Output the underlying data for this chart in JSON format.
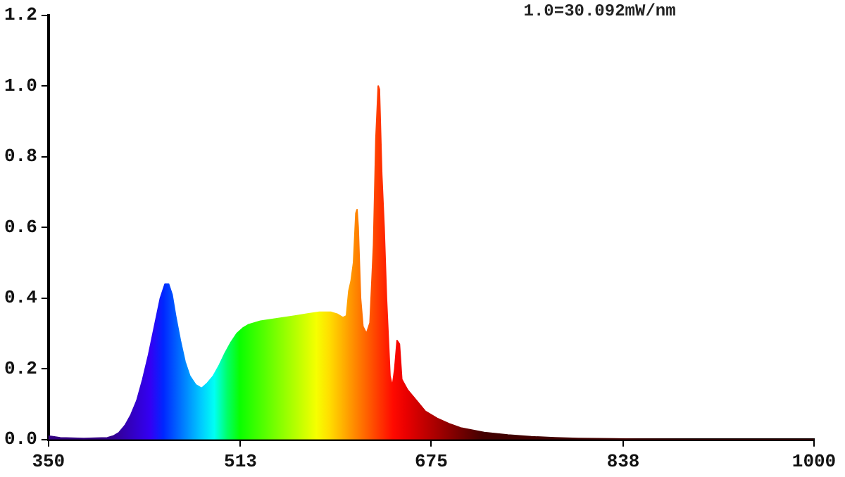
{
  "chart_data": {
    "type": "area",
    "annotations": [
      "1.0=30.092mW/nm"
    ],
    "x": [
      350,
      360,
      380,
      400,
      405,
      410,
      415,
      420,
      425,
      430,
      435,
      440,
      445,
      449,
      452,
      455,
      458,
      462,
      466,
      470,
      475,
      480,
      485,
      490,
      495,
      500,
      505,
      510,
      515,
      520,
      530,
      540,
      550,
      560,
      570,
      580,
      590,
      595,
      600,
      603,
      605,
      607,
      609,
      611,
      612,
      613,
      615,
      617,
      620,
      623,
      626,
      628,
      630,
      631,
      633,
      635,
      637,
      640,
      642,
      644,
      646,
      648,
      650,
      655,
      660,
      670,
      680,
      690,
      700,
      720,
      740,
      760,
      780,
      800,
      830,
      850,
      900,
      1000
    ],
    "values": [
      0.01,
      0.005,
      0.003,
      0.005,
      0.01,
      0.02,
      0.04,
      0.07,
      0.11,
      0.17,
      0.24,
      0.32,
      0.4,
      0.44,
      0.44,
      0.41,
      0.35,
      0.28,
      0.22,
      0.18,
      0.155,
      0.145,
      0.16,
      0.18,
      0.21,
      0.245,
      0.275,
      0.3,
      0.315,
      0.325,
      0.335,
      0.34,
      0.345,
      0.35,
      0.355,
      0.36,
      0.36,
      0.355,
      0.345,
      0.35,
      0.42,
      0.45,
      0.5,
      0.64,
      0.65,
      0.6,
      0.4,
      0.32,
      0.3,
      0.33,
      0.55,
      0.85,
      1.0,
      0.99,
      0.75,
      0.6,
      0.4,
      0.18,
      0.15,
      0.2,
      0.28,
      0.27,
      0.17,
      0.14,
      0.12,
      0.08,
      0.06,
      0.045,
      0.033,
      0.02,
      0.013,
      0.008,
      0.005,
      0.003,
      0.002,
      0.001,
      0,
      0
    ],
    "xlim": [
      350,
      1000
    ],
    "xticks": [
      350,
      513,
      675,
      838,
      1000
    ],
    "ylim": [
      0,
      1.2
    ],
    "yticks": [
      {
        "value": 0,
        "label": "0.0"
      },
      0.2,
      0.4,
      0.6,
      0.8,
      {
        "value": 1,
        "label": "1.0"
      },
      1.2
    ],
    "grid": false,
    "legend": false
  }
}
